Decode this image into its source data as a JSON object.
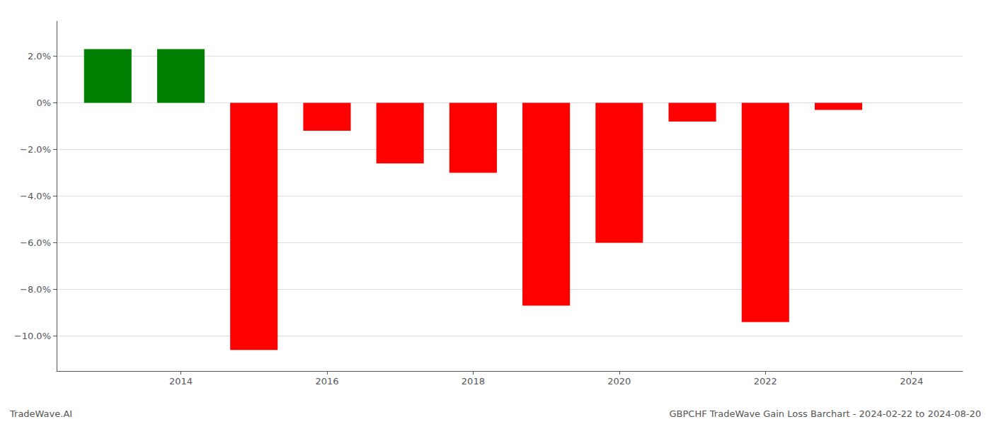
{
  "chart_data": {
    "type": "bar",
    "x": [
      2013,
      2014,
      2015,
      2016,
      2017,
      2018,
      2019,
      2020,
      2021,
      2022,
      2023
    ],
    "values": [
      2.3,
      2.3,
      -10.6,
      -1.2,
      -2.6,
      -3.0,
      -8.7,
      -6.0,
      -0.8,
      -9.4,
      -0.3
    ],
    "colors": [
      "#008000",
      "#008000",
      "#ff0000",
      "#ff0000",
      "#ff0000",
      "#ff0000",
      "#ff0000",
      "#ff0000",
      "#ff0000",
      "#ff0000",
      "#ff0000"
    ],
    "xlim": [
      2012.3,
      2024.7
    ],
    "xticks": [
      2014,
      2016,
      2018,
      2020,
      2022,
      2024
    ],
    "ylim": [
      -11.5,
      3.5
    ],
    "yticks": [
      {
        "value": 2.0,
        "label": "2.0%"
      },
      {
        "value": 0,
        "label": "0%"
      },
      {
        "value": -2.0,
        "label": "−2.0%"
      },
      {
        "value": -4.0,
        "label": "−4.0%"
      },
      {
        "value": -6.0,
        "label": "−6.0%"
      },
      {
        "value": -8.0,
        "label": "−8.0%"
      },
      {
        "value": -10.0,
        "label": "−10.0%"
      }
    ],
    "grid": true,
    "annotations": [
      "TradeWave.AI",
      "GBPCHF TradeWave Gain Loss Barchart - 2024-02-22 to 2024-08-20"
    ]
  }
}
